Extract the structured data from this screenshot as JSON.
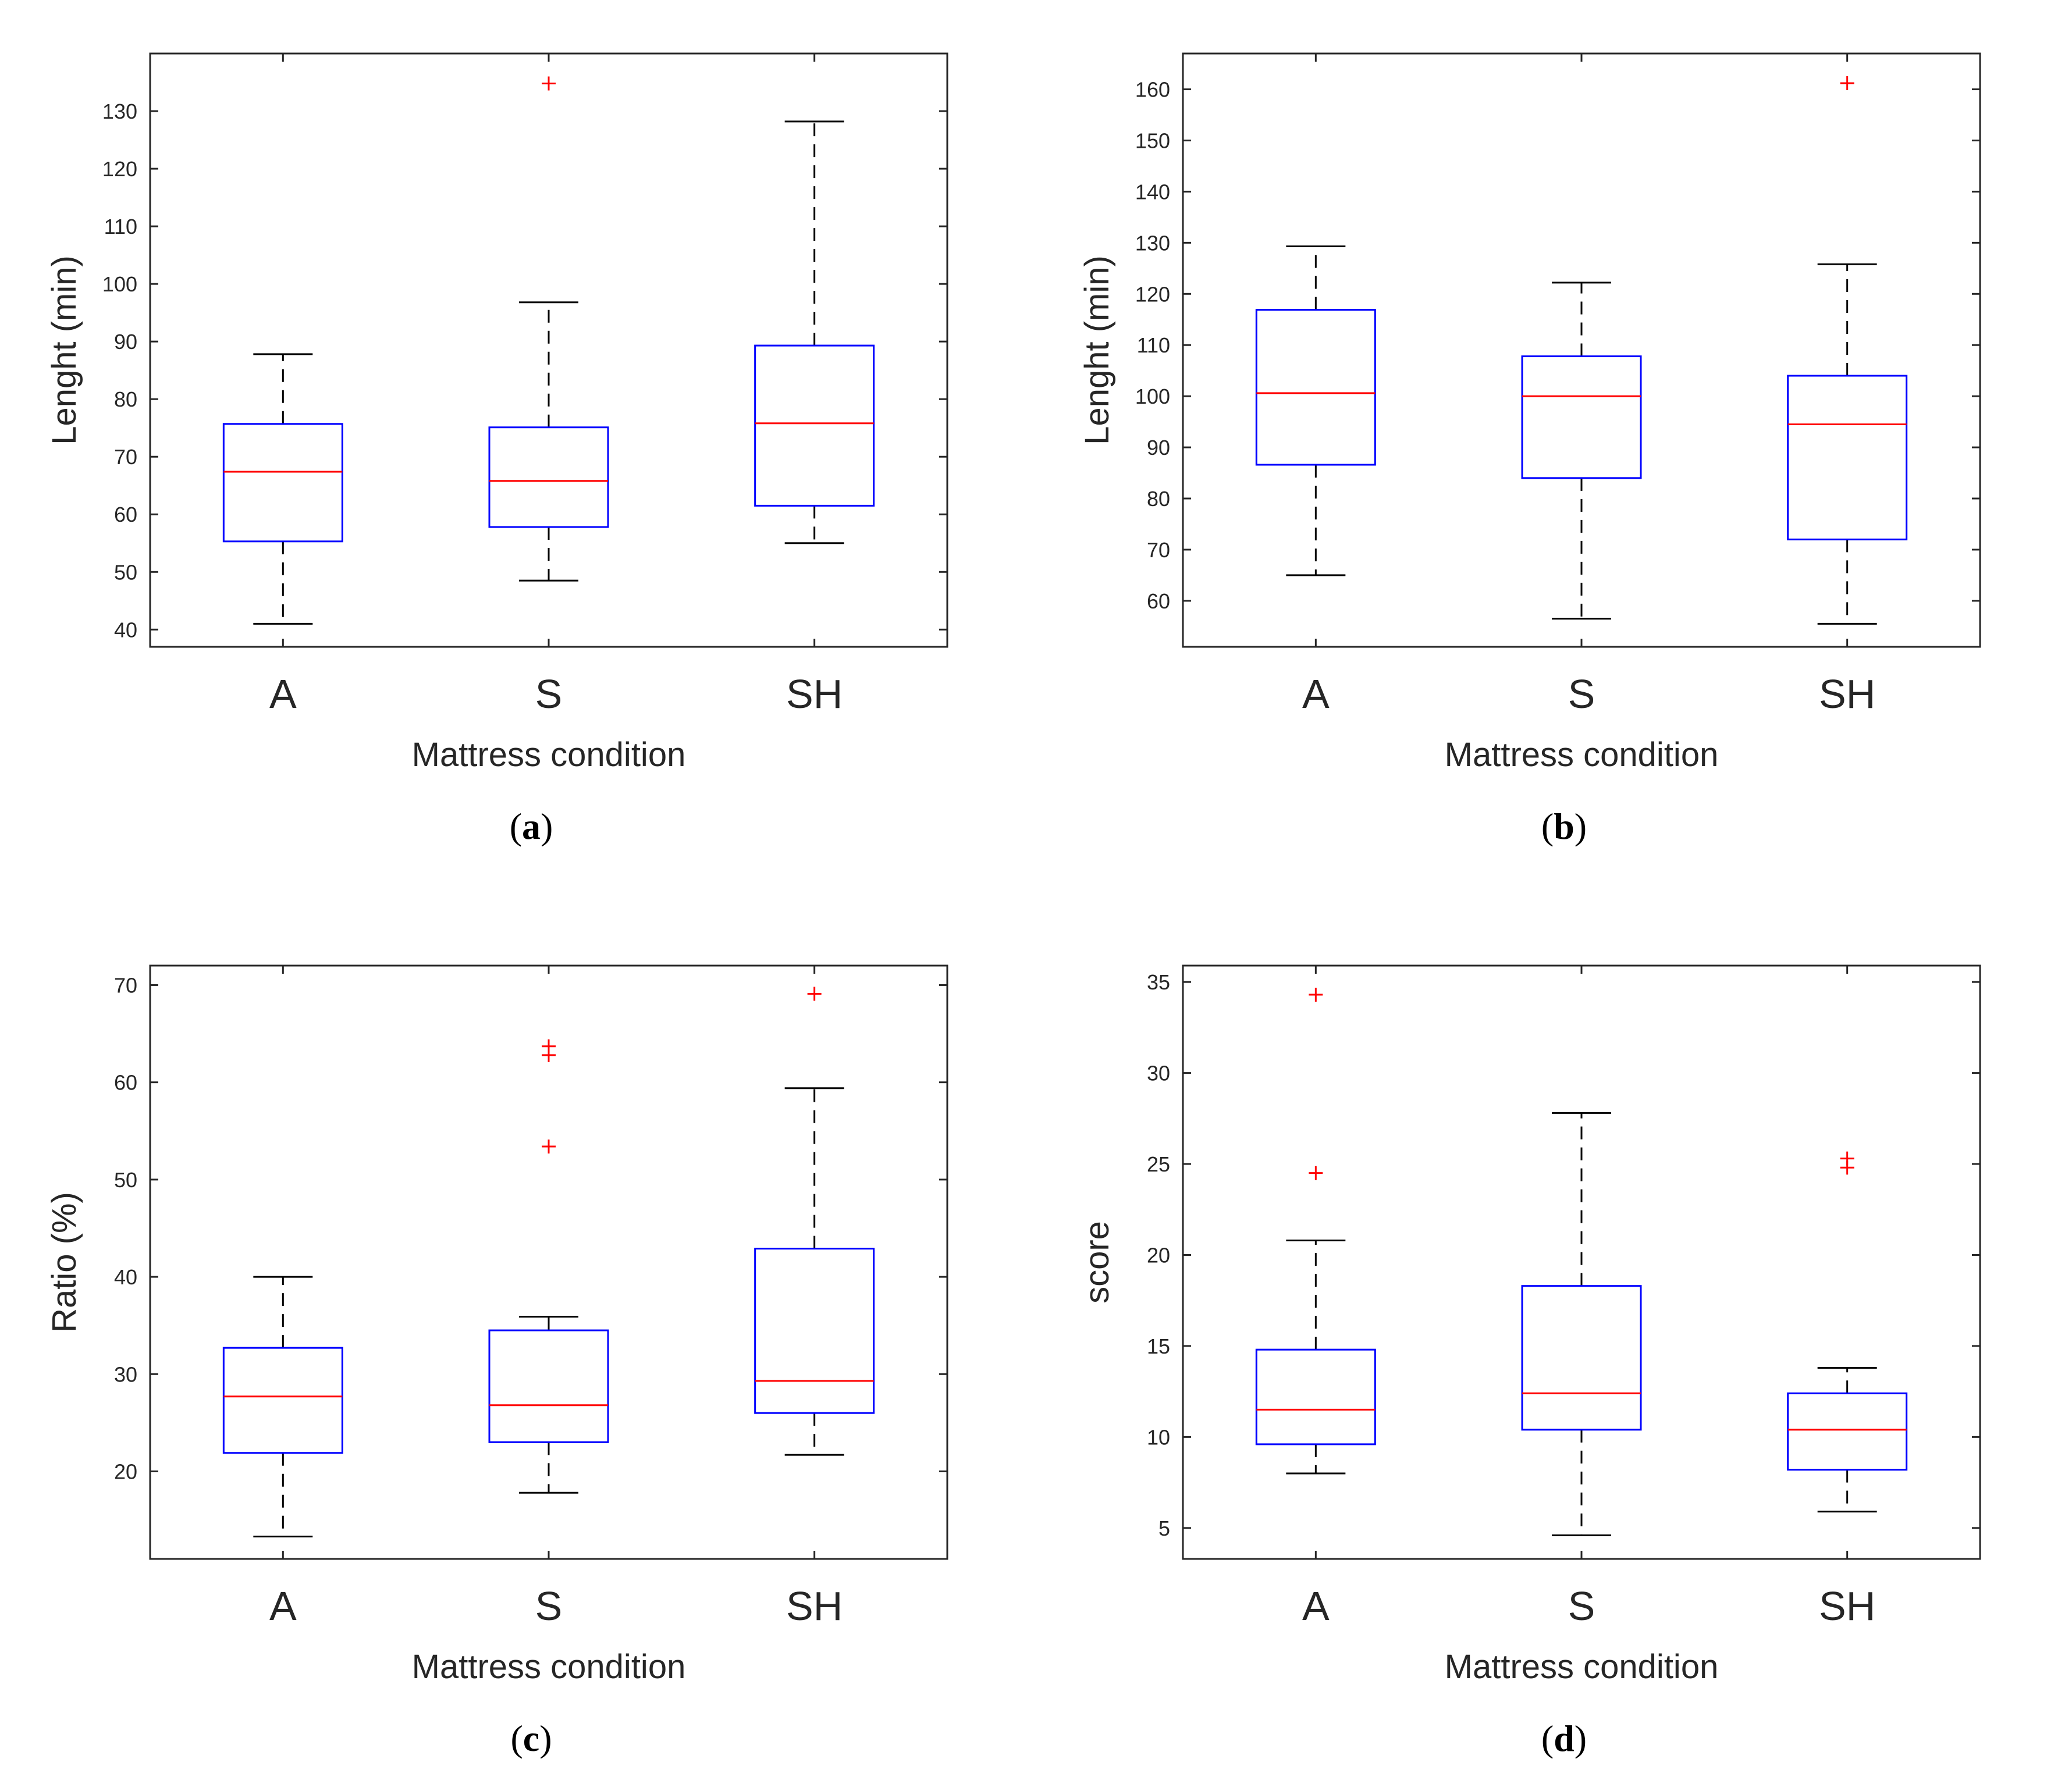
{
  "chart_data": [
    {
      "type": "boxplot",
      "panel_label": "a",
      "xlabel": "Mattress condition",
      "ylabel": "Lenght (min)",
      "categories": [
        "A",
        "S",
        "SH"
      ],
      "ylim": [
        37,
        140
      ],
      "yticks": [
        40,
        50,
        60,
        70,
        80,
        90,
        100,
        110,
        120,
        130
      ],
      "boxes": [
        {
          "category": "A",
          "whisker_low": 41,
          "q1": 55.3,
          "median": 67.4,
          "q3": 75.7,
          "whisker_high": 87.8,
          "outliers": []
        },
        {
          "category": "S",
          "whisker_low": 48.5,
          "q1": 57.8,
          "median": 65.8,
          "q3": 75.1,
          "whisker_high": 96.8,
          "outliers": [
            134.8
          ]
        },
        {
          "category": "SH",
          "whisker_low": 55.0,
          "q1": 61.5,
          "median": 75.8,
          "q3": 89.3,
          "whisker_high": 128.2,
          "outliers": []
        }
      ]
    },
    {
      "type": "boxplot",
      "panel_label": "b",
      "xlabel": "Mattress condition",
      "ylabel": "Lenght (min)",
      "categories": [
        "A",
        "S",
        "SH"
      ],
      "ylim": [
        51,
        167
      ],
      "yticks": [
        60,
        70,
        80,
        90,
        100,
        110,
        120,
        130,
        140,
        150,
        160
      ],
      "boxes": [
        {
          "category": "A",
          "whisker_low": 65.0,
          "q1": 86.6,
          "median": 100.6,
          "q3": 116.9,
          "whisker_high": 129.3,
          "outliers": []
        },
        {
          "category": "S",
          "whisker_low": 56.5,
          "q1": 84.0,
          "median": 100.0,
          "q3": 107.8,
          "whisker_high": 122.2,
          "outliers": []
        },
        {
          "category": "SH",
          "whisker_low": 55.5,
          "q1": 72.0,
          "median": 94.5,
          "q3": 104.0,
          "whisker_high": 125.8,
          "outliers": [
            161.2
          ]
        }
      ]
    },
    {
      "type": "boxplot",
      "panel_label": "c",
      "xlabel": "Mattress condition",
      "ylabel": "Ratio (%)",
      "categories": [
        "A",
        "S",
        "SH"
      ],
      "ylim": [
        11,
        72
      ],
      "yticks": [
        20,
        30,
        40,
        50,
        60,
        70
      ],
      "boxes": [
        {
          "category": "A",
          "whisker_low": 13.3,
          "q1": 21.9,
          "median": 27.7,
          "q3": 32.7,
          "whisker_high": 40.0,
          "outliers": []
        },
        {
          "category": "S",
          "whisker_low": 17.8,
          "q1": 23.0,
          "median": 26.8,
          "q3": 34.5,
          "whisker_high": 35.9,
          "outliers": [
            53.4,
            62.8,
            63.7
          ]
        },
        {
          "category": "SH",
          "whisker_low": 21.7,
          "q1": 26.0,
          "median": 29.3,
          "q3": 42.9,
          "whisker_high": 59.4,
          "outliers": [
            69.1
          ]
        }
      ]
    },
    {
      "type": "boxplot",
      "panel_label": "d",
      "xlabel": "Mattress condition",
      "ylabel": "score",
      "categories": [
        "A",
        "S",
        "SH"
      ],
      "ylim": [
        3.3,
        35.9
      ],
      "yticks": [
        5,
        10,
        15,
        20,
        25,
        30,
        35
      ],
      "boxes": [
        {
          "category": "A",
          "whisker_low": 8.0,
          "q1": 9.6,
          "median": 11.5,
          "q3": 14.8,
          "whisker_high": 20.8,
          "outliers": [
            24.5,
            34.3
          ]
        },
        {
          "category": "S",
          "whisker_low": 4.6,
          "q1": 10.4,
          "median": 12.4,
          "q3": 18.3,
          "whisker_high": 27.8,
          "outliers": []
        },
        {
          "category": "SH",
          "whisker_low": 5.9,
          "q1": 8.2,
          "median": 10.4,
          "q3": 12.4,
          "whisker_high": 13.8,
          "outliers": [
            24.8,
            25.3
          ]
        }
      ]
    }
  ],
  "colors": {
    "box": "#0000ff",
    "median": "#ff0000",
    "whisker": "#000000",
    "outlier": "#ff0000",
    "axis": "#262626"
  }
}
